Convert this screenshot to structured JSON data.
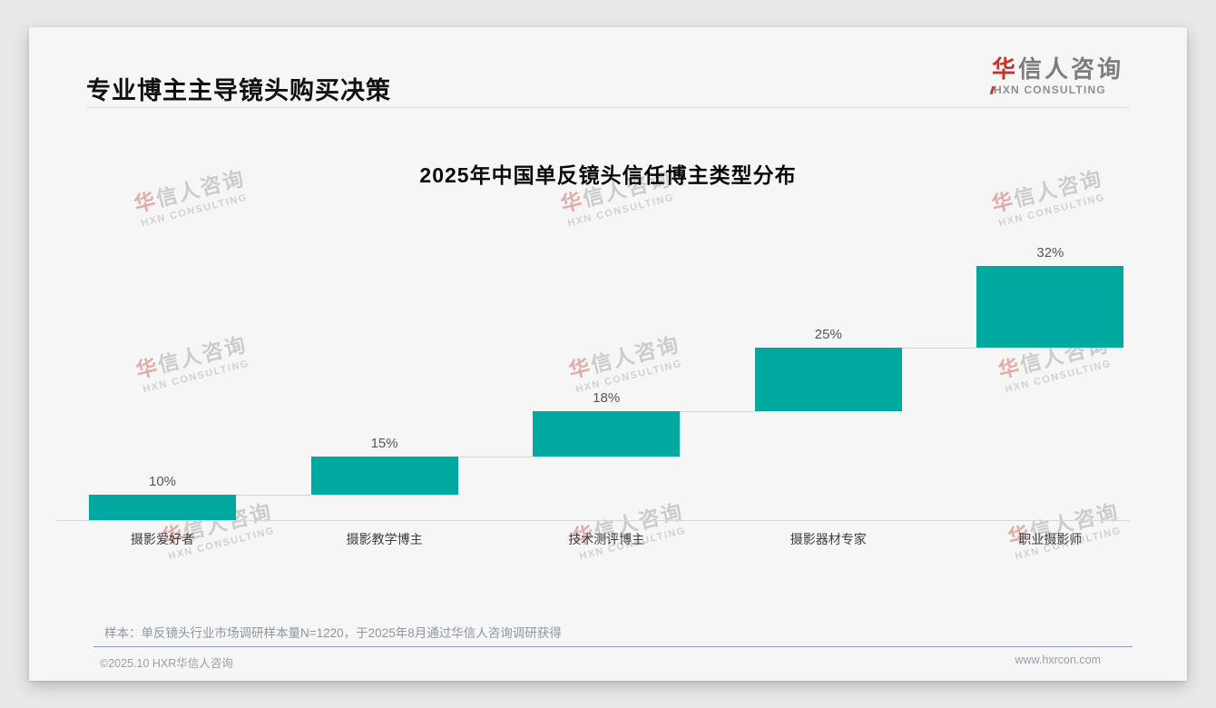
{
  "page": {
    "header": {
      "title": "专业博主主导镜头购买决策"
    },
    "logo": {
      "cn_first": "华",
      "cn_rest": "信人咨询",
      "en": "HXN CONSULTING"
    },
    "watermark": {
      "cn_first": "华",
      "cn_rest": "信人咨询",
      "en": "HXN CONSULTING"
    },
    "note": "样本：单反镜头行业市场调研样本量N=1220，于2025年8月通过华信人咨询调研获得",
    "footer": {
      "copyright": "©2025.10 HXR华信人咨询",
      "website": "www.hxrcon.com"
    }
  },
  "colors": {
    "accent_teal": "#00A9A0",
    "logo_red": "#C5352C",
    "connector_gray": "#D4D4D4"
  },
  "chart_data": {
    "type": "bar",
    "subtype": "waterfall-steps",
    "title": "2025年中国单反镜头信任博主类型分布",
    "categories": [
      "摄影爱好者",
      "摄影教学博主",
      "技术测评博主",
      "摄影器材专家",
      "职业摄影师"
    ],
    "values": [
      10,
      15,
      18,
      25,
      32
    ],
    "value_labels": [
      "10%",
      "15%",
      "18%",
      "25%",
      "32%"
    ],
    "cumulative": [
      10,
      25,
      43,
      68,
      100
    ],
    "unit": "%",
    "bar_color": "#00A9A0",
    "ylim": [
      0,
      100
    ],
    "grid": false,
    "legend": false,
    "xlabel": "",
    "ylabel": ""
  }
}
